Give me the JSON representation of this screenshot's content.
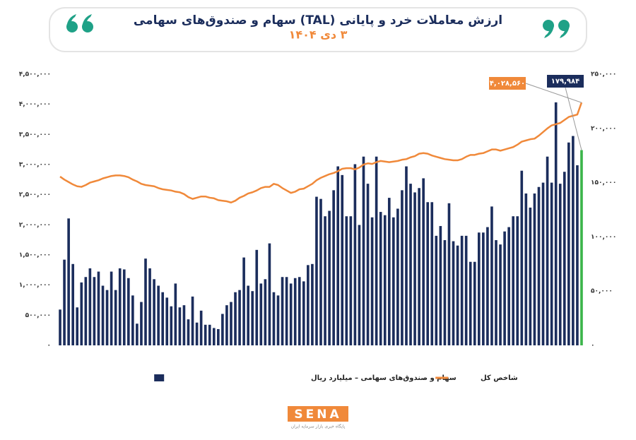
{
  "chart_data": {
    "type": "bar",
    "title": "ارزش معاملات خرد و پایانی (TAL) سهام و صندوق‌های سهامی",
    "subtitle": "۳ دی ۱۴۰۴",
    "ylim": [
      0,
      4500000
    ],
    "yticks": [
      {
        "value": 0,
        "label": "۰"
      },
      {
        "value": 500000,
        "label": "۵۰۰,۰۰۰"
      },
      {
        "value": 1000000,
        "label": "۱,۰۰۰,۰۰۰"
      },
      {
        "value": 1500000,
        "label": "۱,۵۰۰,۰۰۰"
      },
      {
        "value": 2000000,
        "label": "۲,۰۰۰,۰۰۰"
      },
      {
        "value": 2500000,
        "label": "۲,۵۰۰,۰۰۰"
      },
      {
        "value": 3000000,
        "label": "۳,۰۰۰,۰۰۰"
      },
      {
        "value": 3500000,
        "label": "۳,۵۰۰,۰۰۰"
      },
      {
        "value": 4000000,
        "label": "۴,۰۰۰,۰۰۰"
      },
      {
        "value": 4500000,
        "label": "۴,۵۰۰,۰۰۰"
      }
    ],
    "y2lim": [
      0,
      250000
    ],
    "y2ticks": [
      {
        "value": 0,
        "label": "۰"
      },
      {
        "value": 50000,
        "label": "۵۰,۰۰۰"
      },
      {
        "value": 100000,
        "label": "۱۰۰,۰۰۰"
      },
      {
        "value": 150000,
        "label": "۱۵۰,۰۰۰"
      },
      {
        "value": 200000,
        "label": "۲۰۰,۰۰۰"
      },
      {
        "value": 250000,
        "label": "۲۵۰,۰۰۰"
      }
    ],
    "grid": false,
    "legend": "bottom",
    "series": [
      {
        "name": "سهام و صندوق‌های سهامی – میلیارد ریال",
        "type": "bar",
        "axis": "y2",
        "color": "#1b2d5c",
        "highlight_color": "#3bb54a",
        "values": [
          33000,
          79000,
          117000,
          75000,
          35000,
          58000,
          63000,
          71000,
          63000,
          68000,
          55000,
          51000,
          68000,
          51000,
          71000,
          70000,
          62000,
          46000,
          20000,
          40000,
          80000,
          71000,
          61000,
          55000,
          49000,
          44000,
          36000,
          57000,
          35000,
          37000,
          24000,
          45000,
          21000,
          32000,
          19000,
          19000,
          16000,
          15000,
          29000,
          37000,
          40000,
          49000,
          51000,
          81000,
          55000,
          50000,
          88000,
          57000,
          61000,
          94000,
          49000,
          46000,
          63000,
          63000,
          57000,
          62000,
          63000,
          59000,
          74000,
          75000,
          137000,
          135000,
          119000,
          124000,
          143000,
          165000,
          157000,
          119000,
          119000,
          167000,
          111000,
          174000,
          149000,
          118000,
          174000,
          123000,
          120000,
          136000,
          118000,
          126000,
          143000,
          165000,
          149000,
          141000,
          145000,
          154000,
          132000,
          132000,
          101000,
          110000,
          97000,
          131000,
          96000,
          92000,
          101000,
          101000,
          77000,
          77000,
          104000,
          104000,
          109000,
          128000,
          97000,
          93000,
          105000,
          109000,
          119000,
          119000,
          161000,
          140000,
          127000,
          140000,
          146000,
          150000,
          174000,
          150000,
          224000,
          149000,
          160000,
          187000,
          193000,
          166000,
          179984
        ],
        "value_labels": [
          null,
          null,
          null,
          null,
          null,
          null,
          null,
          null,
          null,
          null,
          null,
          null,
          null,
          null,
          null,
          null,
          null,
          null,
          null,
          null,
          null,
          null,
          null,
          null,
          null,
          null,
          null,
          null,
          null,
          null,
          null,
          null,
          null,
          null,
          null,
          null,
          null,
          null,
          null,
          null,
          null,
          null,
          null,
          null,
          null,
          null,
          null,
          null,
          null,
          null,
          null,
          null,
          null,
          null,
          null,
          null,
          null,
          null,
          null,
          null,
          null,
          null,
          null,
          null,
          null,
          null,
          null,
          null,
          null,
          null,
          null,
          null,
          null,
          null,
          null,
          null,
          null,
          null,
          null,
          null,
          null,
          null,
          null,
          null,
          null,
          null,
          null,
          null,
          null,
          null,
          null,
          null,
          null,
          null,
          null,
          null,
          null,
          null,
          null,
          null,
          null,
          null,
          null,
          null,
          null,
          null,
          null,
          null,
          null,
          null,
          null,
          null,
          null,
          null,
          null,
          null,
          null,
          null,
          null,
          null,
          null,
          null,
          "۱۷۹,۹۸۴"
        ]
      },
      {
        "name": "شاخص کل",
        "type": "line",
        "axis": "y",
        "color": "#f0893a",
        "values": [
          2800000,
          2750000,
          2710000,
          2670000,
          2640000,
          2630000,
          2660000,
          2700000,
          2720000,
          2740000,
          2770000,
          2790000,
          2810000,
          2820000,
          2820000,
          2810000,
          2790000,
          2750000,
          2720000,
          2680000,
          2660000,
          2650000,
          2640000,
          2610000,
          2590000,
          2580000,
          2570000,
          2550000,
          2540000,
          2510000,
          2460000,
          2430000,
          2450000,
          2470000,
          2470000,
          2450000,
          2440000,
          2410000,
          2400000,
          2390000,
          2370000,
          2400000,
          2450000,
          2480000,
          2520000,
          2540000,
          2570000,
          2610000,
          2630000,
          2630000,
          2680000,
          2660000,
          2610000,
          2570000,
          2530000,
          2550000,
          2590000,
          2600000,
          2640000,
          2680000,
          2740000,
          2780000,
          2810000,
          2840000,
          2860000,
          2890000,
          2930000,
          2940000,
          2940000,
          2920000,
          2950000,
          3000000,
          3020000,
          3010000,
          3040000,
          3060000,
          3050000,
          3040000,
          3050000,
          3060000,
          3080000,
          3090000,
          3120000,
          3140000,
          3180000,
          3190000,
          3180000,
          3150000,
          3130000,
          3110000,
          3090000,
          3080000,
          3070000,
          3070000,
          3090000,
          3130000,
          3160000,
          3160000,
          3180000,
          3190000,
          3220000,
          3250000,
          3250000,
          3230000,
          3250000,
          3270000,
          3290000,
          3330000,
          3380000,
          3400000,
          3420000,
          3430000,
          3480000,
          3540000,
          3600000,
          3650000,
          3670000,
          3690000,
          3740000,
          3790000,
          3810000,
          3830000,
          4028560
        ],
        "value_labels": [
          null,
          null,
          null,
          null,
          null,
          null,
          null,
          null,
          null,
          null,
          null,
          null,
          null,
          null,
          null,
          null,
          null,
          null,
          null,
          null,
          null,
          null,
          null,
          null,
          null,
          null,
          null,
          null,
          null,
          null,
          null,
          null,
          null,
          null,
          null,
          null,
          null,
          null,
          null,
          null,
          null,
          null,
          null,
          null,
          null,
          null,
          null,
          null,
          null,
          null,
          null,
          null,
          null,
          null,
          null,
          null,
          null,
          null,
          null,
          null,
          null,
          null,
          null,
          null,
          null,
          null,
          null,
          null,
          null,
          null,
          null,
          null,
          null,
          null,
          null,
          null,
          null,
          null,
          null,
          null,
          null,
          null,
          null,
          null,
          null,
          null,
          null,
          null,
          null,
          null,
          null,
          null,
          null,
          null,
          null,
          null,
          null,
          null,
          null,
          null,
          null,
          null,
          null,
          null,
          null,
          null,
          null,
          null,
          null,
          null,
          null,
          null,
          null,
          null,
          null,
          null,
          null,
          null,
          null,
          null,
          null,
          null,
          "۴,۰۲۸,۵۶۰"
        ]
      }
    ]
  },
  "footer": {
    "logo": "SENA",
    "tagline": "پایگاه خبری بازار سرمایه ایران"
  }
}
